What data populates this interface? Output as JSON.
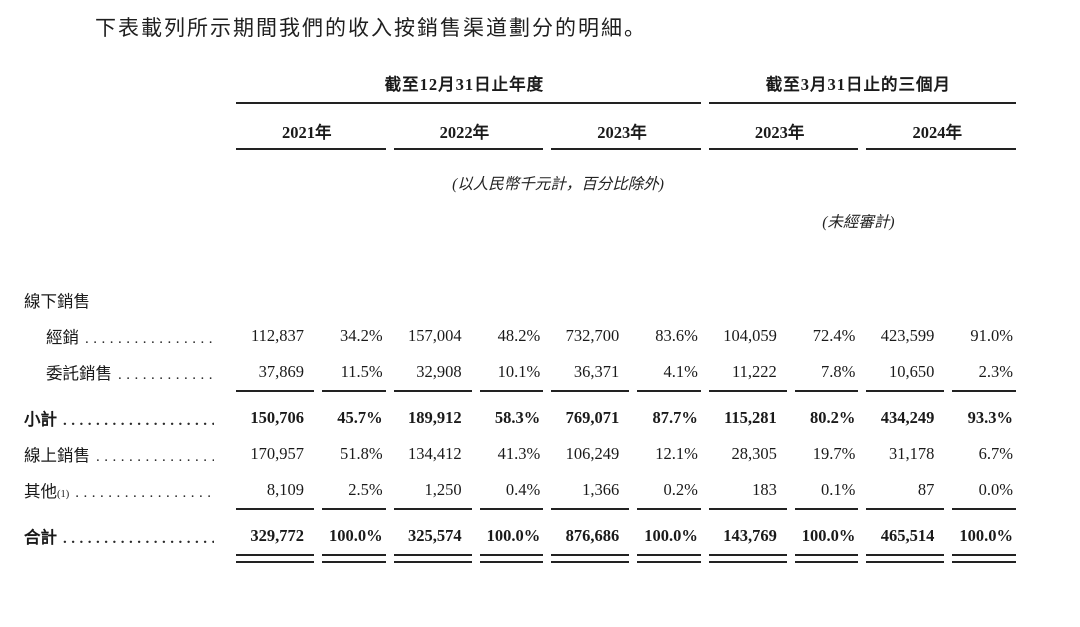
{
  "intro_text": "下表載列所示期間我們的收入按銷售渠道劃分的明細。",
  "table": {
    "period_groups": [
      {
        "label": "截至12月31日止年度"
      },
      {
        "label": "截至3月31日止的三個月"
      }
    ],
    "year_columns": [
      "2021年",
      "2022年",
      "2023年",
      "2023年",
      "2024年"
    ],
    "unit_note": "(以人民幣千元計，百分比除外)",
    "unaudited_note": "(未經審計)",
    "rows": [
      {
        "label": "線下銷售",
        "section": true,
        "leader": false,
        "indent": false,
        "bold": false,
        "cells": [
          "",
          "",
          "",
          "",
          "",
          "",
          "",
          "",
          "",
          ""
        ]
      },
      {
        "label": "經銷",
        "indent": true,
        "leader": true,
        "bold": false,
        "cells": [
          "112,837",
          "34.2%",
          "157,004",
          "48.2%",
          "732,700",
          "83.6%",
          "104,059",
          "72.4%",
          "423,599",
          "91.0%"
        ]
      },
      {
        "label": "委託銷售",
        "indent": true,
        "leader": true,
        "bold": false,
        "rule_after": "single",
        "cells": [
          "37,869",
          "11.5%",
          "32,908",
          "10.1%",
          "36,371",
          "4.1%",
          "11,222",
          "7.8%",
          "10,650",
          "2.3%"
        ]
      },
      {
        "label": "小計",
        "indent": false,
        "leader": true,
        "bold": true,
        "cells": [
          "150,706",
          "45.7%",
          "189,912",
          "58.3%",
          "769,071",
          "87.7%",
          "115,281",
          "80.2%",
          "434,249",
          "93.3%"
        ]
      },
      {
        "label": "線上銷售",
        "indent": false,
        "leader": true,
        "bold": false,
        "cells": [
          "170,957",
          "51.8%",
          "134,412",
          "41.3%",
          "106,249",
          "12.1%",
          "28,305",
          "19.7%",
          "31,178",
          "6.7%"
        ]
      },
      {
        "label": "其他",
        "sup": "(1)",
        "indent": false,
        "leader": true,
        "bold": false,
        "rule_after": "single",
        "cells": [
          "8,109",
          "2.5%",
          "1,250",
          "0.4%",
          "1,366",
          "0.2%",
          "183",
          "0.1%",
          "87",
          "0.0%"
        ]
      },
      {
        "label": "合計",
        "indent": false,
        "leader": true,
        "bold": true,
        "rule_after": "double",
        "cells": [
          "329,772",
          "100.0%",
          "325,574",
          "100.0%",
          "876,686",
          "100.0%",
          "143,769",
          "100.0%",
          "465,514",
          "100.0%"
        ]
      }
    ]
  }
}
